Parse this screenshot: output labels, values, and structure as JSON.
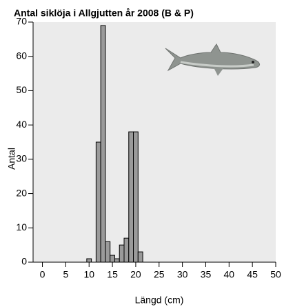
{
  "chart_data": {
    "type": "histogram",
    "title": "Antal siklöja i Allgjutten år 2008 (B & P)",
    "x_label": "Längd (cm)",
    "y_label": "Antal",
    "bins": [
      9.5,
      10.5,
      11.5,
      12.5,
      13.5,
      14.5,
      15.5,
      16.5,
      17.5,
      18.5,
      19.5,
      20.5,
      21.5
    ],
    "values": [
      1,
      0,
      35,
      69,
      6,
      2,
      1,
      5,
      7,
      38,
      38,
      3
    ],
    "color": "#9a9a9a",
    "xlim": [
      -2,
      50
    ],
    "xticks": [
      0,
      5,
      10,
      15,
      20,
      25,
      30,
      35,
      40,
      45,
      50
    ],
    "ylim": [
      0,
      70
    ],
    "yticks": [
      0,
      10,
      20,
      30,
      40,
      50,
      60,
      70
    ]
  }
}
